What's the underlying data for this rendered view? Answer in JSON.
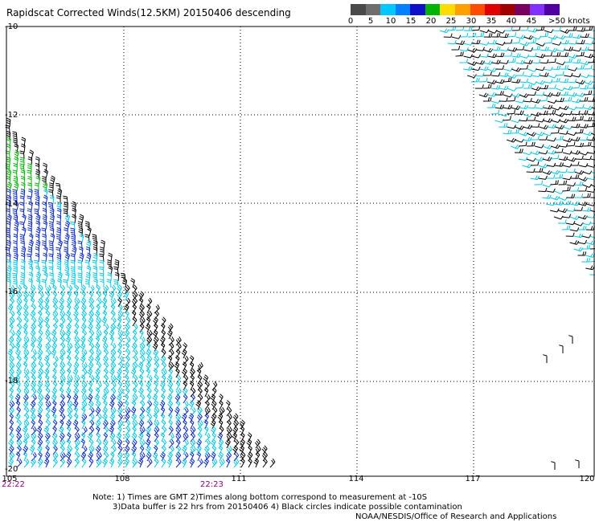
{
  "title": "Rapidscat Corrected Winds(12.5KM) 20150406 descending",
  "legend": {
    "colors": [
      "#4a4a4a",
      "#6e6e6e",
      "#00c8ff",
      "#0080ff",
      "#1010c8",
      "#00b400",
      "#ffdc00",
      "#ffa000",
      "#ff4c00",
      "#e00000",
      "#a00000",
      "#7a0060",
      "#8030ff",
      "#5000a0"
    ],
    "ticks": [
      "0",
      "5",
      "10",
      "15",
      "20",
      "25",
      "30",
      "35",
      "40",
      "45",
      ">50 knots"
    ]
  },
  "axes": {
    "lat_labels": [
      "-10",
      "-12",
      "-14",
      "-16",
      "-18",
      "-20"
    ],
    "lon_labels": [
      "105",
      "108",
      "111",
      "114",
      "117",
      "120"
    ],
    "lat_range": [
      -20,
      -10
    ],
    "lon_range": [
      105,
      120
    ]
  },
  "time_labels": [
    "22:22",
    "22:23"
  ],
  "notes": {
    "line1": "Note: 1) Times are GMT 2)Times along bottom correspond to measurement at -10S",
    "line2": "3)Data buffer is 22 hrs from 20150406 4) Black circles indicate possible contamination",
    "credit": "NOAA/NESDIS/Office of Research and Applications"
  },
  "wind_colors": {
    "black": "#000000",
    "cyan": "#00c8e6",
    "blue": "#0a28c8",
    "green": "#00b400"
  }
}
